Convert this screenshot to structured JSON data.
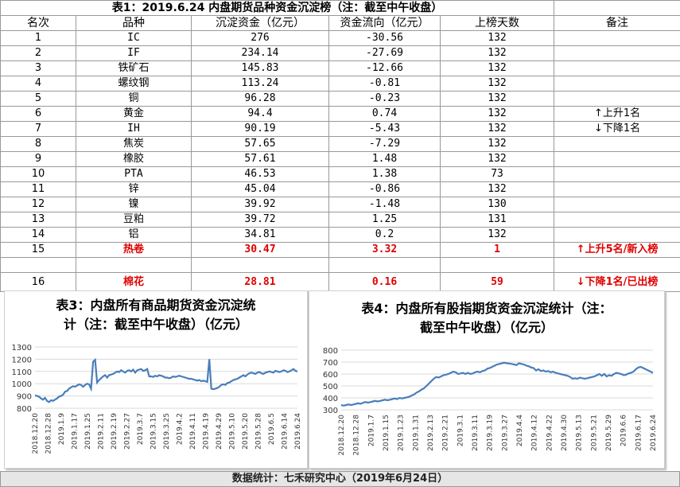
{
  "title": "表1：2019.6.24 内盘期货品种资金沉淀榜（注：截至中午收盘）",
  "headers": [
    "名次",
    "品种",
    "沉淀资金（亿元）",
    "资金流向（亿元）",
    "上榜天数",
    "备注"
  ],
  "rows": [
    {
      "rank": "1",
      "name": "IC",
      "capital": "276",
      "flow": "-30.56",
      "days": "132",
      "note": "",
      "red": false
    },
    {
      "rank": "2",
      "name": "IF",
      "capital": "234.14",
      "flow": "-27.69",
      "days": "132",
      "note": "",
      "red": false
    },
    {
      "rank": "3",
      "name": "铁矿石",
      "capital": "145.83",
      "flow": "-12.66",
      "days": "132",
      "note": "",
      "red": false
    },
    {
      "rank": "4",
      "name": "螺纹钢",
      "capital": "113.24",
      "flow": "-0.81",
      "days": "132",
      "note": "",
      "red": false
    },
    {
      "rank": "5",
      "name": "铜",
      "capital": "96.28",
      "flow": "-0.23",
      "days": "132",
      "note": "",
      "red": false
    },
    {
      "rank": "6",
      "name": "黄金",
      "capital": "94.4",
      "flow": "0.74",
      "days": "132",
      "note": "↑上升1名",
      "red": false
    },
    {
      "rank": "7",
      "name": "IH",
      "capital": "90.19",
      "flow": "-5.43",
      "days": "132",
      "note": "↓下降1名",
      "red": false
    },
    {
      "rank": "8",
      "name": "焦炭",
      "capital": "57.65",
      "flow": "-7.29",
      "days": "132",
      "note": "",
      "red": false
    },
    {
      "rank": "9",
      "name": "橡胶",
      "capital": "57.61",
      "flow": "1.48",
      "days": "132",
      "note": "",
      "red": false
    },
    {
      "rank": "10",
      "name": "PTA",
      "capital": "46.53",
      "flow": "1.38",
      "days": "73",
      "note": "",
      "red": false
    },
    {
      "rank": "11",
      "name": "锌",
      "capital": "45.04",
      "flow": "-0.86",
      "days": "132",
      "note": "",
      "red": false
    },
    {
      "rank": "12",
      "name": "镍",
      "capital": "39.92",
      "flow": "-1.48",
      "days": "130",
      "note": "",
      "red": false
    },
    {
      "rank": "13",
      "name": "豆粕",
      "capital": "39.72",
      "flow": "1.25",
      "days": "131",
      "note": "",
      "red": false
    },
    {
      "rank": "14",
      "name": "铝",
      "capital": "34.81",
      "flow": "0.2",
      "days": "132",
      "note": "",
      "red": false
    },
    {
      "rank": "15",
      "name": "热卷",
      "capital": "30.47",
      "flow": "3.32",
      "days": "1",
      "note": "↑上升5名/新入榜",
      "red": true
    },
    {
      "rank": "",
      "name": "",
      "capital": "",
      "flow": "",
      "days": "",
      "note": "",
      "red": false
    },
    {
      "rank": "16",
      "name": "棉花",
      "capital": "28.81",
      "flow": "0.16",
      "days": "59",
      "note": "↓下降1名/已出榜",
      "red": true
    }
  ],
  "footer": "数据统计：七禾研究中心（2019年6月24日）",
  "colors": {
    "line": "#4a7ebb",
    "red": "#e00000",
    "grid": "#d9d9d9"
  },
  "chart_data": [
    {
      "type": "line",
      "title": "表3：内盘所有商品期货资金沉淀统计（注：截至中午收盘）（亿元）",
      "title_lines": [
        "表3：内盘所有商品期货资金沉淀统",
        "计（注：截至中午收盘）（亿元）"
      ],
      "yticks": [
        800,
        900,
        1000,
        1100,
        1200,
        1300
      ],
      "ylim": [
        800,
        1300
      ],
      "xticks": [
        "2018.12.20",
        "2018.12.28",
        "2019.1.9",
        "2019.1.17",
        "2019.1.25",
        "2019.2.11",
        "2019.2.19",
        "2019.2.27",
        "2019.3.7",
        "2019.3.15",
        "2019.3.25",
        "2019.4.2",
        "2019.4.11",
        "2019.4.19",
        "2019.4.29",
        "2019.5.10",
        "2019.5.20",
        "2019.5.28",
        "2019.6.5",
        "2019.6.14",
        "2019.6.24"
      ],
      "values": [
        905,
        900,
        895,
        880,
        870,
        885,
        860,
        850,
        865,
        860,
        870,
        880,
        895,
        900,
        910,
        935,
        940,
        960,
        970,
        980,
        975,
        985,
        995,
        990,
        975,
        990,
        1000,
        995,
        960,
        1180,
        1195,
        1010,
        1030,
        1045,
        1060,
        1070,
        1050,
        1070,
        1075,
        1080,
        1090,
        1100,
        1095,
        1110,
        1100,
        1090,
        1105,
        1110,
        1100,
        1115,
        1090,
        1110,
        1115,
        1120,
        1105,
        1110,
        1120,
        1060,
        1060,
        1055,
        1065,
        1060,
        1070,
        1065,
        1060,
        1050,
        1050,
        1045,
        1050,
        1060,
        1055,
        1060,
        1065,
        1060,
        1055,
        1050,
        1045,
        1040,
        1040,
        1035,
        1030,
        1025,
        1030,
        1020,
        1025,
        1020,
        1015,
        1200,
        960,
        955,
        960,
        965,
        975,
        990,
        995,
        990,
        1005,
        1010,
        1020,
        1030,
        1035,
        1040,
        1050,
        1060,
        1070,
        1060,
        1075,
        1085,
        1090,
        1085,
        1080,
        1090,
        1095,
        1085,
        1080,
        1090,
        1095,
        1100,
        1095,
        1090,
        1105,
        1100,
        1095,
        1100,
        1110,
        1105,
        1095,
        1100,
        1110,
        1120,
        1105,
        1100
      ]
    },
    {
      "type": "line",
      "title": "表4：内盘所有股指期货资金沉淀统计（注：截至中午收盘）（亿元）",
      "title_lines": [
        "表4：内盘所有股指期货资金沉淀统计（注：",
        "截至中午收盘）（亿元）"
      ],
      "yticks": [
        300,
        400,
        500,
        600,
        700,
        800
      ],
      "ylim": [
        300,
        800
      ],
      "xticks": [
        "2018.12.20",
        "2018.12.28",
        "2019.1.7",
        "2019.1.15",
        "2019.1.23",
        "2019.1.31",
        "2019.2.13",
        "2019.2.21",
        "2019.3.1",
        "2019.3.11",
        "2019.3.19",
        "2019.3.27",
        "2019.4.4",
        "2019.4.12",
        "2019.4.22",
        "2019.4.30",
        "2019.5.13",
        "2019.5.21",
        "2019.5.29",
        "2019.6.6",
        "2019.6.17"
      ],
      "xticks_extra": "2019.6.24",
      "values": [
        340,
        335,
        340,
        345,
        340,
        345,
        350,
        355,
        350,
        360,
        365,
        360,
        365,
        370,
        375,
        370,
        375,
        380,
        385,
        380,
        385,
        390,
        395,
        390,
        400,
        395,
        400,
        405,
        410,
        420,
        430,
        445,
        455,
        470,
        480,
        500,
        520,
        540,
        560,
        575,
        570,
        580,
        590,
        595,
        600,
        610,
        620,
        615,
        600,
        605,
        610,
        600,
        610,
        600,
        605,
        615,
        620,
        615,
        625,
        630,
        645,
        650,
        660,
        670,
        680,
        685,
        690,
        695,
        690,
        688,
        685,
        680,
        675,
        690,
        685,
        680,
        670,
        665,
        655,
        650,
        630,
        640,
        625,
        630,
        620,
        625,
        615,
        620,
        610,
        605,
        600,
        595,
        590,
        585,
        575,
        560,
        565,
        560,
        570,
        565,
        560,
        565,
        570,
        575,
        580,
        590,
        600,
        585,
        600,
        580,
        590,
        585,
        600,
        610,
        605,
        600,
        590,
        595,
        605,
        610,
        620,
        640,
        655,
        660,
        650,
        640,
        630,
        620,
        610
      ]
    }
  ]
}
